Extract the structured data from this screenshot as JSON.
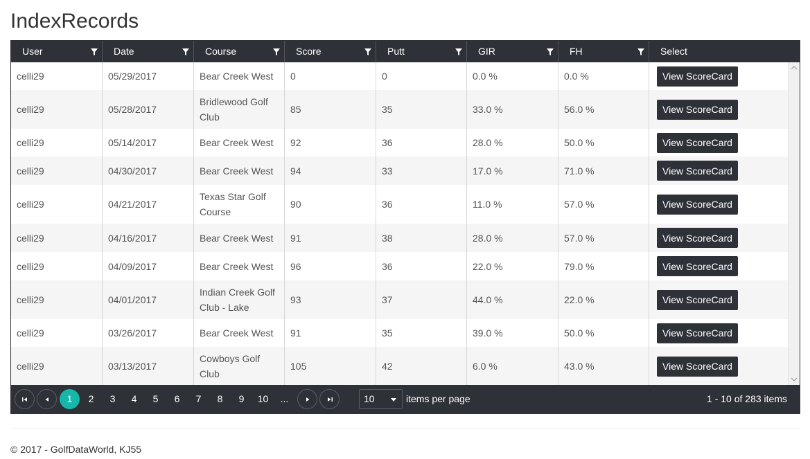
{
  "page": {
    "title": "IndexRecords"
  },
  "grid": {
    "columns": [
      "User",
      "Date",
      "Course",
      "Score",
      "Putt",
      "GIR",
      "FH",
      "Select"
    ],
    "rows": [
      {
        "user": "celli29",
        "date": "05/29/2017",
        "course": [
          "Bear Creek West"
        ],
        "score": "0",
        "putt": "0",
        "gir": "0.0 %",
        "fh": "0.0 %",
        "button": "View ScoreCard"
      },
      {
        "user": "celli29",
        "date": "05/28/2017",
        "course": [
          "Bridlewood Golf",
          "Club"
        ],
        "score": "85",
        "putt": "35",
        "gir": "33.0 %",
        "fh": "56.0 %",
        "button": "View ScoreCard"
      },
      {
        "user": "celli29",
        "date": "05/14/2017",
        "course": [
          "Bear Creek West"
        ],
        "score": "92",
        "putt": "36",
        "gir": "28.0 %",
        "fh": "50.0 %",
        "button": "View ScoreCard"
      },
      {
        "user": "celli29",
        "date": "04/30/2017",
        "course": [
          "Bear Creek West"
        ],
        "score": "94",
        "putt": "33",
        "gir": "17.0 %",
        "fh": "71.0 %",
        "button": "View ScoreCard"
      },
      {
        "user": "celli29",
        "date": "04/21/2017",
        "course": [
          "Texas Star Golf",
          "Course"
        ],
        "score": "90",
        "putt": "36",
        "gir": "11.0 %",
        "fh": "57.0 %",
        "button": "View ScoreCard"
      },
      {
        "user": "celli29",
        "date": "04/16/2017",
        "course": [
          "Bear Creek West"
        ],
        "score": "91",
        "putt": "38",
        "gir": "28.0 %",
        "fh": "57.0 %",
        "button": "View ScoreCard"
      },
      {
        "user": "celli29",
        "date": "04/09/2017",
        "course": [
          "Bear Creek West"
        ],
        "score": "96",
        "putt": "36",
        "gir": "22.0 %",
        "fh": "79.0 %",
        "button": "View ScoreCard"
      },
      {
        "user": "celli29",
        "date": "04/01/2017",
        "course": [
          "Indian Creek Golf",
          "Club - Lake"
        ],
        "score": "93",
        "putt": "37",
        "gir": "44.0 %",
        "fh": "22.0 %",
        "button": "View ScoreCard"
      },
      {
        "user": "celli29",
        "date": "03/26/2017",
        "course": [
          "Bear Creek West"
        ],
        "score": "91",
        "putt": "35",
        "gir": "39.0 %",
        "fh": "50.0 %",
        "button": "View ScoreCard"
      },
      {
        "user": "celli29",
        "date": "03/13/2017",
        "course": [
          "Cowboys Golf",
          "Club"
        ],
        "score": "105",
        "putt": "42",
        "gir": "6.0 %",
        "fh": "43.0 %",
        "button": "View ScoreCard"
      }
    ]
  },
  "pager": {
    "pages": [
      "1",
      "2",
      "3",
      "4",
      "5",
      "6",
      "7",
      "8",
      "9",
      "10",
      "..."
    ],
    "active_page": "1",
    "page_size": "10",
    "items_per_page_label": "items per page",
    "info": "1 - 10 of 283 items"
  },
  "footer": {
    "text": "© 2017 - GolfDataWorld, KJ55"
  },
  "colors": {
    "header_bg": "#2f3138",
    "accent": "#16b7a8",
    "alt_row": "#f5f5f5"
  },
  "icons": {
    "column_filter": "filter-icon",
    "first": "first-page-icon",
    "prev": "prev-page-icon",
    "next": "next-page-icon",
    "last": "last-page-icon",
    "dropdown": "chevron-down-icon"
  }
}
